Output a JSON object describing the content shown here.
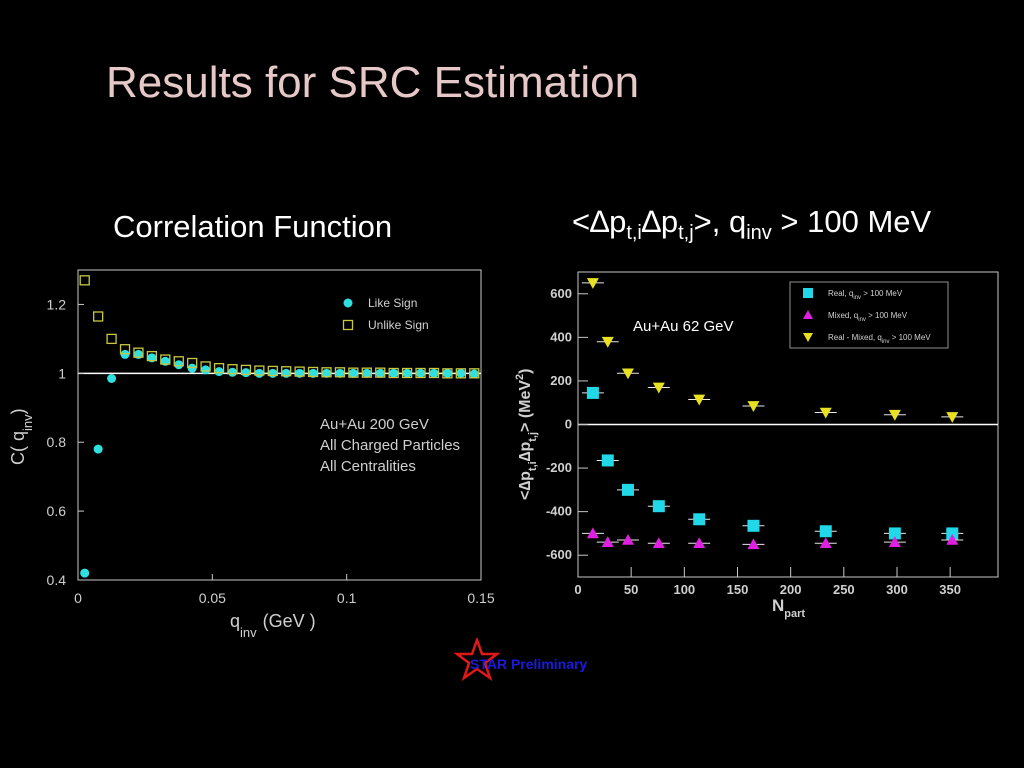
{
  "slide": {
    "title": "Results for SRC Estimation",
    "left_subtitle": "Correlation Function",
    "right_subtitle": {
      "prefix": "<∆p",
      "sub1": "t,i",
      "mid": "∆p",
      "sub2": "t,j",
      "mid2": ">, q",
      "sub3": "inv",
      "suffix": " > 100 MeV"
    },
    "badge_text": "STAR Preliminary",
    "badge_icon": "red-star-icon"
  },
  "chart_data": [
    {
      "type": "scatter",
      "xlabel": "q",
      "xlabel_sub": "inv",
      "xlabel_unit": "(GeV  )",
      "ylabel": "C( q",
      "ylabel_sub": "inv",
      "ylabel_end": ")",
      "xlim": [
        0,
        0.15
      ],
      "ylim": [
        0.4,
        1.3
      ],
      "xticks": [
        0,
        0.05,
        0.1,
        0.15
      ],
      "xtick_labels": [
        "0",
        "0.05",
        "0.1",
        "0.15"
      ],
      "yticks": [
        0.4,
        0.6,
        0.8,
        1,
        1.2
      ],
      "ytick_labels": [
        "0.4",
        "0.6",
        "0.8",
        "1",
        "1.2"
      ],
      "reference_line": 1,
      "annotation": [
        "Au+Au 200 GeV",
        "All Charged Particles",
        "All Centralities"
      ],
      "legend_position": "top-right",
      "series": [
        {
          "name": "Like Sign",
          "marker": "filled-circle",
          "color": "#30e0e0",
          "x": [
            0.0025,
            0.0075,
            0.0125,
            0.0175,
            0.0225,
            0.0275,
            0.0325,
            0.0375,
            0.0425,
            0.0475,
            0.0525,
            0.0575,
            0.0625,
            0.0675,
            0.0725,
            0.0775,
            0.0825,
            0.0875,
            0.0925,
            0.0975,
            0.1025,
            0.1075,
            0.1125,
            0.1175,
            0.1225,
            0.1275,
            0.1325,
            0.1375,
            0.1425,
            0.1475
          ],
          "y": [
            0.42,
            0.78,
            0.985,
            1.055,
            1.055,
            1.045,
            1.035,
            1.025,
            1.015,
            1.01,
            1.005,
            1.003,
            1.002,
            1.0,
            1.0,
            1.0,
            1.0,
            1.0,
            1.0,
            1.0,
            1.0,
            1.0,
            1.0,
            1.0,
            1.0,
            1.0,
            1.0,
            1.0,
            1.0,
            0.998
          ]
        },
        {
          "name": "Unlike Sign",
          "marker": "open-square",
          "color": "#c8c840",
          "x": [
            0.0025,
            0.0075,
            0.0125,
            0.0175,
            0.0225,
            0.0275,
            0.0325,
            0.0375,
            0.0425,
            0.0475,
            0.0525,
            0.0575,
            0.0625,
            0.0675,
            0.0725,
            0.0775,
            0.0825,
            0.0875,
            0.0925,
            0.0975,
            0.1025,
            0.1075,
            0.1125,
            0.1175,
            0.1225,
            0.1275,
            0.1325,
            0.1375,
            0.1425,
            0.1475
          ],
          "y": [
            1.27,
            1.165,
            1.1,
            1.07,
            1.06,
            1.05,
            1.04,
            1.035,
            1.03,
            1.02,
            1.015,
            1.012,
            1.01,
            1.008,
            1.007,
            1.006,
            1.005,
            1.004,
            1.003,
            1.003,
            1.002,
            1.002,
            1.002,
            1.001,
            1.001,
            1.001,
            1.001,
            1.0,
            1.0,
            1.0
          ]
        }
      ]
    },
    {
      "type": "scatter",
      "xlabel": "N",
      "xlabel_sub": "part",
      "ylabel": "<∆p",
      "ylabel_sub1": "t,i",
      "ylabel_mid": "∆p",
      "ylabel_sub2": "t,j",
      "ylabel_end": "> (MeV",
      "ylabel_sup": "2",
      "ylabel_close": ")",
      "xlim": [
        0,
        395
      ],
      "ylim": [
        -700,
        700
      ],
      "xticks": [
        0,
        50,
        100,
        150,
        200,
        250,
        300,
        350
      ],
      "xtick_labels": [
        "0",
        "50",
        "100",
        "150",
        "200",
        "250",
        "300",
        "350"
      ],
      "yticks": [
        -600,
        -400,
        -200,
        0,
        200,
        400,
        600
      ],
      "ytick_labels": [
        "-600",
        "-400",
        "-200",
        "0",
        "200",
        "400",
        "600"
      ],
      "reference_line": 0,
      "annotation": "Au+Au 62 GeV",
      "legend_position": "top-right",
      "series": [
        {
          "name": "Real, q",
          "name_sub": "inv",
          "name_end": " > 100 MeV",
          "marker": "filled-square",
          "color": "#20d8e8",
          "x": [
            14,
            28,
            47,
            76,
            114,
            165,
            233,
            298,
            352
          ],
          "y": [
            145,
            -165,
            -300,
            -375,
            -435,
            -465,
            -490,
            -500,
            -500
          ]
        },
        {
          "name": "Mixed, q",
          "name_sub": "inv",
          "name_end": " > 100 MeV",
          "marker": "filled-triangle-up",
          "color": "#e020e0",
          "x": [
            14,
            28,
            47,
            76,
            114,
            165,
            233,
            298,
            352
          ],
          "y": [
            -500,
            -540,
            -530,
            -545,
            -545,
            -550,
            -545,
            -540,
            -530
          ]
        },
        {
          "name": "Real - Mixed, q",
          "name_sub": "inv",
          "name_end": " > 100 MeV",
          "marker": "filled-triangle-down",
          "color": "#e8e020",
          "x": [
            14,
            28,
            47,
            76,
            114,
            165,
            233,
            298,
            352
          ],
          "y": [
            650,
            380,
            235,
            170,
            115,
            85,
            55,
            45,
            35
          ]
        }
      ]
    }
  ]
}
